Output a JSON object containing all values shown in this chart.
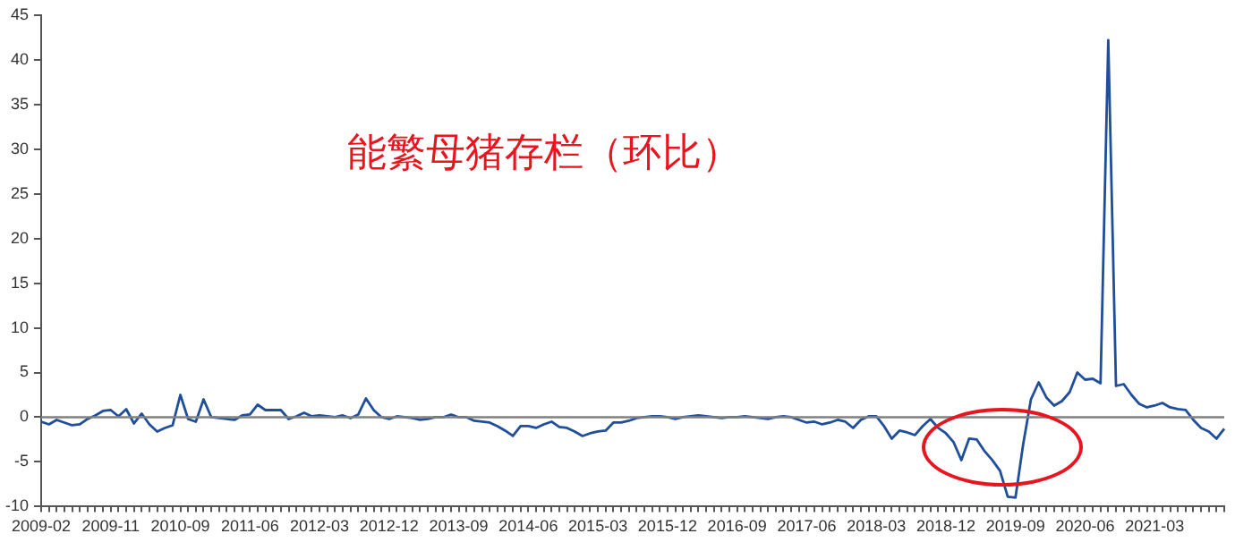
{
  "chart_data": {
    "type": "line",
    "title": "能繁母猪存栏（环比）",
    "categories": [
      "2009-02",
      null,
      null,
      null,
      null,
      null,
      null,
      null,
      null,
      "2009-11",
      null,
      null,
      null,
      null,
      null,
      null,
      null,
      null,
      "2010-09",
      null,
      null,
      null,
      null,
      null,
      null,
      null,
      null,
      "2011-06",
      null,
      null,
      null,
      null,
      null,
      null,
      null,
      null,
      "2012-03",
      null,
      null,
      null,
      null,
      null,
      null,
      null,
      null,
      "2012-12",
      null,
      null,
      null,
      null,
      null,
      null,
      null,
      null,
      "2013-09",
      null,
      null,
      null,
      null,
      null,
      null,
      null,
      null,
      "2014-06",
      null,
      null,
      null,
      null,
      null,
      null,
      null,
      null,
      "2015-03",
      null,
      null,
      null,
      null,
      null,
      null,
      null,
      null,
      "2015-12",
      null,
      null,
      null,
      null,
      null,
      null,
      null,
      null,
      "2016-09",
      null,
      null,
      null,
      null,
      null,
      null,
      null,
      null,
      "2017-06",
      null,
      null,
      null,
      null,
      null,
      null,
      null,
      null,
      "2018-03",
      null,
      null,
      null,
      null,
      null,
      null,
      null,
      null,
      "2018-12",
      null,
      null,
      null,
      null,
      null,
      null,
      null,
      null,
      "2019-09",
      null,
      null,
      null,
      null,
      null,
      null,
      null,
      null,
      "2020-06",
      null,
      null,
      null,
      null,
      null,
      null,
      null,
      null,
      "2021-03",
      null,
      null,
      null,
      null,
      null,
      null,
      null,
      null,
      null
    ],
    "series": [
      {
        "color": "#1f4e9a",
        "values": [
          -0.5,
          -0.8,
          -0.3,
          -0.6,
          -0.9,
          -0.8,
          -0.2,
          0.2,
          0.7,
          0.8,
          0.1,
          0.9,
          -0.7,
          0.4,
          -0.8,
          -1.6,
          -1.2,
          -0.9,
          2.5,
          -0.2,
          -0.5,
          2.0,
          0,
          -0.1,
          -0.2,
          -0.3,
          0.2,
          0.3,
          1.4,
          0.8,
          0.8,
          0.8,
          -0.2,
          0.1,
          0.5,
          0.1,
          0.2,
          0.1,
          0,
          0.2,
          -0.1,
          0.3,
          2.1,
          0.8,
          0,
          -0.2,
          0.1,
          0,
          -0.1,
          -0.3,
          -0.2,
          0,
          0,
          0.3,
          0,
          0,
          -0.4,
          -0.5,
          -0.6,
          -1.0,
          -1.5,
          -2.1,
          -1.0,
          -1.0,
          -1.2,
          -0.8,
          -0.5,
          -1.1,
          -1.2,
          -1.6,
          -2.1,
          -1.8,
          -1.6,
          -1.5,
          -0.6,
          -0.6,
          -0.4,
          -0.1,
          0,
          0.1,
          0.1,
          0,
          -0.2,
          0,
          0.1,
          0.2,
          0.1,
          0,
          -0.1,
          0,
          0,
          0.1,
          0,
          -0.1,
          -0.2,
          0,
          0.1,
          0,
          -0.3,
          -0.6,
          -0.5,
          -0.8,
          -0.6,
          -0.3,
          -0.5,
          -1.2,
          -0.3,
          0.1,
          0.1,
          -1.0,
          -2.4,
          -1.5,
          -1.7,
          -2.0,
          -1.0,
          -0.2,
          -1.2,
          -1.8,
          -2.8,
          -4.8,
          -2.4,
          -2.5,
          -3.8,
          -4.8,
          -6.0,
          -8.9,
          -9.0,
          -3.0,
          2.0,
          3.9,
          2.2,
          1.3,
          1.8,
          2.8,
          5.0,
          4.2,
          4.3,
          3.8,
          42.2,
          3.5,
          3.7,
          2.5,
          1.5,
          1.1,
          1.3,
          1.6,
          1.1,
          0.9,
          0.8,
          -0.3,
          -1.2,
          -1.6,
          -2.4,
          -1.3
        ]
      }
    ],
    "ylim": [
      -10,
      45
    ],
    "yticks": [
      -10,
      -5,
      0,
      5,
      10,
      15,
      20,
      25,
      30,
      35,
      40,
      45
    ],
    "ref_lines": [
      {
        "axis": "y",
        "value": 0,
        "color": "#808080"
      }
    ],
    "grid": false,
    "legend": false
  }
}
